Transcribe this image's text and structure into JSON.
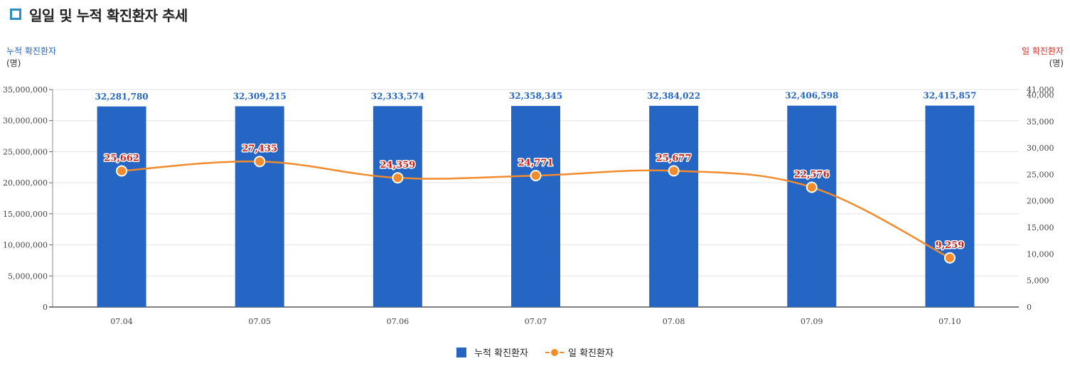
{
  "header": {
    "title": "일일 및 누적 확진환자 추세"
  },
  "axes": {
    "left_title": "누적 확진환자",
    "left_unit": "(명)",
    "right_title": "일 확진환자",
    "right_unit": "(명)"
  },
  "legend": {
    "bar_label": "누적 확진환자",
    "line_label": "일 확진환자"
  },
  "colors": {
    "bar": "#2566c4",
    "line": "#f28a2e",
    "line_label": "#c9221c",
    "bar_label": "#2566c4",
    "title_icon": "#2a8fc4"
  },
  "chart_data": {
    "type": "bar",
    "categories": [
      "07.04",
      "07.05",
      "07.06",
      "07.07",
      "07.08",
      "07.09",
      "07.10"
    ],
    "series": [
      {
        "name": "누적 확진환자",
        "type": "bar",
        "axis": "left",
        "values": [
          32281780,
          32309215,
          32333574,
          32358345,
          32384022,
          32406598,
          32415857
        ]
      },
      {
        "name": "일 확진환자",
        "type": "line",
        "axis": "right",
        "values": [
          25662,
          27435,
          24359,
          24771,
          25677,
          22576,
          9259
        ]
      }
    ],
    "left_axis": {
      "min": 0,
      "max": 35000000,
      "ticks": [
        "0",
        "5,000,000",
        "10,000,000",
        "15,000,000",
        "20,000,000",
        "25,000,000",
        "30,000,000",
        "35,000,000"
      ]
    },
    "right_axis": {
      "min": 0,
      "max": 41000,
      "ticks": [
        "0",
        "5,000",
        "10,000",
        "15,000",
        "20,000",
        "25,000",
        "30,000",
        "35,000",
        "40,000",
        "41,000"
      ]
    },
    "bar_labels": [
      "32,281,780",
      "32,309,215",
      "32,333,574",
      "32,358,345",
      "32,384,022",
      "32,406,598",
      "32,415,857"
    ],
    "line_labels": [
      "25,662",
      "27,435",
      "24,359",
      "24,771",
      "25,677",
      "22,576",
      "9,259"
    ],
    "grid": true,
    "legend_position": "bottom"
  }
}
